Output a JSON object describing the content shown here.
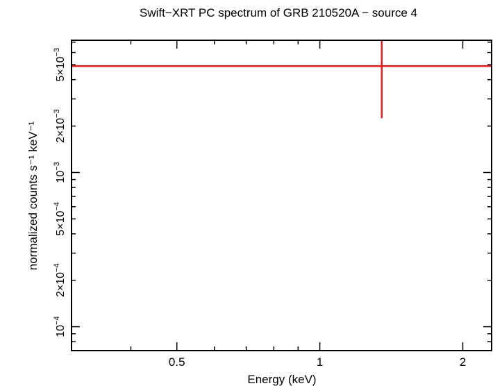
{
  "chart_data": {
    "type": "scatter",
    "title": "Swift−XRT PC spectrum of GRB 210520A − source 4",
    "xlabel": "Energy (keV)",
    "ylabel": "normalized counts s⁻¹ keV⁻¹",
    "x_scale": "log",
    "y_scale": "log",
    "xlim": [
      0.3,
      2.3
    ],
    "ylim": [
      7e-05,
      0.0072
    ],
    "x_ticks": [
      {
        "value": 0.5,
        "label": "0.5"
      },
      {
        "value": 1,
        "label": "1"
      },
      {
        "value": 2,
        "label": "2"
      }
    ],
    "y_ticks": [
      {
        "value": 0.0001,
        "mant": "10",
        "exp": "−4"
      },
      {
        "value": 0.0002,
        "mant": "2×10",
        "exp": "−4"
      },
      {
        "value": 0.0005,
        "mant": "5×10",
        "exp": "−4"
      },
      {
        "value": 0.001,
        "mant": "10",
        "exp": "−3"
      },
      {
        "value": 0.002,
        "mant": "2×10",
        "exp": "−3"
      },
      {
        "value": 0.005,
        "mant": "5×10",
        "exp": "−3"
      }
    ],
    "grid": false,
    "series": [
      {
        "color": "#e31a1c",
        "points": [
          {
            "x_low": 0.3,
            "x_high": 2.3,
            "x": 1.35,
            "y": 0.0049,
            "y_low": 0.00225,
            "y_high": 0.0072
          }
        ]
      }
    ]
  }
}
